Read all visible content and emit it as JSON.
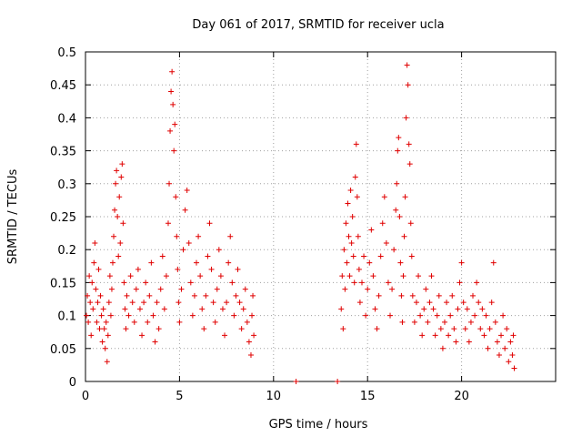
{
  "chart_data": {
    "type": "scatter",
    "title": "Day 061 of 2017, SRMTID for receiver ucla",
    "xlabel": "GPS time / hours",
    "ylabel": "SRMTID / TECUs",
    "xlim": [
      0,
      25
    ],
    "ylim": [
      0,
      0.5
    ],
    "grid": true,
    "marker": "plus",
    "series_color": "#e00000",
    "x_ticks": [
      {
        "value": 0,
        "label": "0"
      },
      {
        "value": 5,
        "label": "5"
      },
      {
        "value": 10,
        "label": "10"
      },
      {
        "value": 15,
        "label": "15"
      },
      {
        "value": 20,
        "label": "20"
      }
    ],
    "y_ticks": [
      {
        "value": 0,
        "label": "0"
      },
      {
        "value": 0.05,
        "label": "0.05"
      },
      {
        "value": 0.1,
        "label": "0.1"
      },
      {
        "value": 0.15,
        "label": "0.15"
      },
      {
        "value": 0.2,
        "label": "0.2"
      },
      {
        "value": 0.25,
        "label": "0.25"
      },
      {
        "value": 0.3,
        "label": "0.3"
      },
      {
        "value": 0.35,
        "label": "0.35"
      },
      {
        "value": 0.4,
        "label": "0.4"
      },
      {
        "value": 0.45,
        "label": "0.45"
      },
      {
        "value": 0.5,
        "label": "0.5"
      }
    ],
    "series": [
      {
        "name": "SRMTID",
        "points": [
          [
            0.05,
            0.1
          ],
          [
            0.1,
            0.13
          ],
          [
            0.15,
            0.09
          ],
          [
            0.2,
            0.16
          ],
          [
            0.25,
            0.12
          ],
          [
            0.3,
            0.07
          ],
          [
            0.35,
            0.15
          ],
          [
            0.4,
            0.11
          ],
          [
            0.45,
            0.18
          ],
          [
            0.5,
            0.21
          ],
          [
            0.55,
            0.14
          ],
          [
            0.6,
            0.09
          ],
          [
            0.65,
            0.12
          ],
          [
            0.7,
            0.17
          ],
          [
            0.75,
            0.08
          ],
          [
            0.8,
            0.13
          ],
          [
            0.85,
            0.1
          ],
          [
            0.9,
            0.06
          ],
          [
            0.95,
            0.11
          ],
          [
            1.0,
            0.08
          ],
          [
            1.05,
            0.05
          ],
          [
            1.1,
            0.09
          ],
          [
            1.15,
            0.03
          ],
          [
            1.2,
            0.07
          ],
          [
            1.25,
            0.12
          ],
          [
            1.3,
            0.16
          ],
          [
            1.35,
            0.1
          ],
          [
            1.4,
            0.14
          ],
          [
            1.45,
            0.18
          ],
          [
            1.5,
            0.22
          ],
          [
            1.55,
            0.26
          ],
          [
            1.6,
            0.3
          ],
          [
            1.65,
            0.32
          ],
          [
            1.7,
            0.25
          ],
          [
            1.75,
            0.19
          ],
          [
            1.8,
            0.28
          ],
          [
            1.85,
            0.21
          ],
          [
            1.9,
            0.31
          ],
          [
            1.95,
            0.33
          ],
          [
            2.0,
            0.24
          ],
          [
            2.05,
            0.15
          ],
          [
            2.1,
            0.11
          ],
          [
            2.15,
            0.08
          ],
          [
            2.2,
            0.13
          ],
          [
            2.3,
            0.1
          ],
          [
            2.4,
            0.16
          ],
          [
            2.5,
            0.12
          ],
          [
            2.6,
            0.09
          ],
          [
            2.7,
            0.14
          ],
          [
            2.8,
            0.17
          ],
          [
            2.9,
            0.11
          ],
          [
            3.0,
            0.07
          ],
          [
            3.1,
            0.12
          ],
          [
            3.2,
            0.15
          ],
          [
            3.3,
            0.09
          ],
          [
            3.4,
            0.13
          ],
          [
            3.5,
            0.18
          ],
          [
            3.6,
            0.1
          ],
          [
            3.7,
            0.06
          ],
          [
            3.8,
            0.12
          ],
          [
            3.9,
            0.08
          ],
          [
            4.0,
            0.14
          ],
          [
            4.1,
            0.19
          ],
          [
            4.2,
            0.11
          ],
          [
            4.3,
            0.16
          ],
          [
            4.4,
            0.24
          ],
          [
            4.45,
            0.3
          ],
          [
            4.5,
            0.38
          ],
          [
            4.55,
            0.44
          ],
          [
            4.6,
            0.47
          ],
          [
            4.65,
            0.42
          ],
          [
            4.7,
            0.35
          ],
          [
            4.75,
            0.39
          ],
          [
            4.8,
            0.28
          ],
          [
            4.85,
            0.22
          ],
          [
            4.9,
            0.17
          ],
          [
            4.95,
            0.12
          ],
          [
            5.0,
            0.09
          ],
          [
            5.1,
            0.14
          ],
          [
            5.2,
            0.2
          ],
          [
            5.3,
            0.26
          ],
          [
            5.4,
            0.29
          ],
          [
            5.5,
            0.21
          ],
          [
            5.6,
            0.15
          ],
          [
            5.7,
            0.1
          ],
          [
            5.8,
            0.13
          ],
          [
            5.9,
            0.18
          ],
          [
            6.0,
            0.22
          ],
          [
            6.1,
            0.16
          ],
          [
            6.2,
            0.11
          ],
          [
            6.3,
            0.08
          ],
          [
            6.4,
            0.13
          ],
          [
            6.5,
            0.19
          ],
          [
            6.6,
            0.24
          ],
          [
            6.7,
            0.17
          ],
          [
            6.8,
            0.12
          ],
          [
            6.9,
            0.09
          ],
          [
            7.0,
            0.14
          ],
          [
            7.1,
            0.2
          ],
          [
            7.2,
            0.16
          ],
          [
            7.3,
            0.11
          ],
          [
            7.4,
            0.07
          ],
          [
            7.5,
            0.12
          ],
          [
            7.6,
            0.18
          ],
          [
            7.7,
            0.22
          ],
          [
            7.8,
            0.15
          ],
          [
            7.9,
            0.1
          ],
          [
            8.0,
            0.13
          ],
          [
            8.1,
            0.17
          ],
          [
            8.2,
            0.12
          ],
          [
            8.3,
            0.08
          ],
          [
            8.4,
            0.11
          ],
          [
            8.5,
            0.14
          ],
          [
            8.6,
            0.09
          ],
          [
            8.7,
            0.06
          ],
          [
            8.8,
            0.04
          ],
          [
            8.85,
            0.1
          ],
          [
            8.9,
            0.13
          ],
          [
            8.95,
            0.07
          ],
          [
            11.2,
            0.0
          ],
          [
            13.4,
            0.0
          ],
          [
            13.6,
            0.11
          ],
          [
            13.65,
            0.16
          ],
          [
            13.7,
            0.08
          ],
          [
            13.75,
            0.2
          ],
          [
            13.8,
            0.14
          ],
          [
            13.85,
            0.24
          ],
          [
            13.9,
            0.18
          ],
          [
            13.95,
            0.27
          ],
          [
            14.0,
            0.22
          ],
          [
            14.05,
            0.16
          ],
          [
            14.1,
            0.29
          ],
          [
            14.15,
            0.21
          ],
          [
            14.2,
            0.25
          ],
          [
            14.25,
            0.19
          ],
          [
            14.3,
            0.15
          ],
          [
            14.35,
            0.31
          ],
          [
            14.4,
            0.36
          ],
          [
            14.45,
            0.28
          ],
          [
            14.5,
            0.22
          ],
          [
            14.55,
            0.17
          ],
          [
            14.6,
            0.12
          ],
          [
            14.7,
            0.15
          ],
          [
            14.8,
            0.19
          ],
          [
            14.9,
            0.1
          ],
          [
            15.0,
            0.14
          ],
          [
            15.1,
            0.18
          ],
          [
            15.2,
            0.23
          ],
          [
            15.3,
            0.16
          ],
          [
            15.4,
            0.11
          ],
          [
            15.5,
            0.08
          ],
          [
            15.6,
            0.13
          ],
          [
            15.7,
            0.19
          ],
          [
            15.8,
            0.24
          ],
          [
            15.9,
            0.28
          ],
          [
            16.0,
            0.21
          ],
          [
            16.1,
            0.15
          ],
          [
            16.2,
            0.1
          ],
          [
            16.3,
            0.14
          ],
          [
            16.4,
            0.2
          ],
          [
            16.5,
            0.26
          ],
          [
            16.55,
            0.3
          ],
          [
            16.6,
            0.35
          ],
          [
            16.65,
            0.37
          ],
          [
            16.7,
            0.25
          ],
          [
            16.75,
            0.18
          ],
          [
            16.8,
            0.13
          ],
          [
            16.85,
            0.09
          ],
          [
            16.9,
            0.16
          ],
          [
            16.95,
            0.22
          ],
          [
            17.0,
            0.28
          ],
          [
            17.05,
            0.4
          ],
          [
            17.1,
            0.48
          ],
          [
            17.15,
            0.45
          ],
          [
            17.2,
            0.36
          ],
          [
            17.25,
            0.33
          ],
          [
            17.3,
            0.24
          ],
          [
            17.35,
            0.19
          ],
          [
            17.4,
            0.13
          ],
          [
            17.5,
            0.09
          ],
          [
            17.6,
            0.12
          ],
          [
            17.7,
            0.16
          ],
          [
            17.8,
            0.1
          ],
          [
            17.9,
            0.07
          ],
          [
            18.0,
            0.11
          ],
          [
            18.1,
            0.14
          ],
          [
            18.2,
            0.09
          ],
          [
            18.3,
            0.12
          ],
          [
            18.4,
            0.16
          ],
          [
            18.5,
            0.11
          ],
          [
            18.6,
            0.07
          ],
          [
            18.7,
            0.1
          ],
          [
            18.8,
            0.13
          ],
          [
            18.9,
            0.08
          ],
          [
            19.0,
            0.05
          ],
          [
            19.1,
            0.09
          ],
          [
            19.2,
            0.12
          ],
          [
            19.3,
            0.07
          ],
          [
            19.4,
            0.1
          ],
          [
            19.5,
            0.13
          ],
          [
            19.6,
            0.08
          ],
          [
            19.7,
            0.06
          ],
          [
            19.8,
            0.11
          ],
          [
            19.9,
            0.15
          ],
          [
            20.0,
            0.18
          ],
          [
            20.1,
            0.12
          ],
          [
            20.2,
            0.08
          ],
          [
            20.3,
            0.11
          ],
          [
            20.4,
            0.06
          ],
          [
            20.5,
            0.09
          ],
          [
            20.6,
            0.13
          ],
          [
            20.7,
            0.1
          ],
          [
            20.8,
            0.15
          ],
          [
            20.9,
            0.12
          ],
          [
            21.0,
            0.08
          ],
          [
            21.1,
            0.11
          ],
          [
            21.2,
            0.07
          ],
          [
            21.3,
            0.1
          ],
          [
            21.4,
            0.05
          ],
          [
            21.5,
            0.08
          ],
          [
            21.6,
            0.12
          ],
          [
            21.7,
            0.18
          ],
          [
            21.8,
            0.09
          ],
          [
            21.9,
            0.06
          ],
          [
            22.0,
            0.04
          ],
          [
            22.1,
            0.07
          ],
          [
            22.2,
            0.1
          ],
          [
            22.3,
            0.05
          ],
          [
            22.4,
            0.08
          ],
          [
            22.5,
            0.03
          ],
          [
            22.6,
            0.06
          ],
          [
            22.7,
            0.04
          ],
          [
            22.75,
            0.07
          ],
          [
            22.8,
            0.02
          ]
        ]
      }
    ]
  }
}
